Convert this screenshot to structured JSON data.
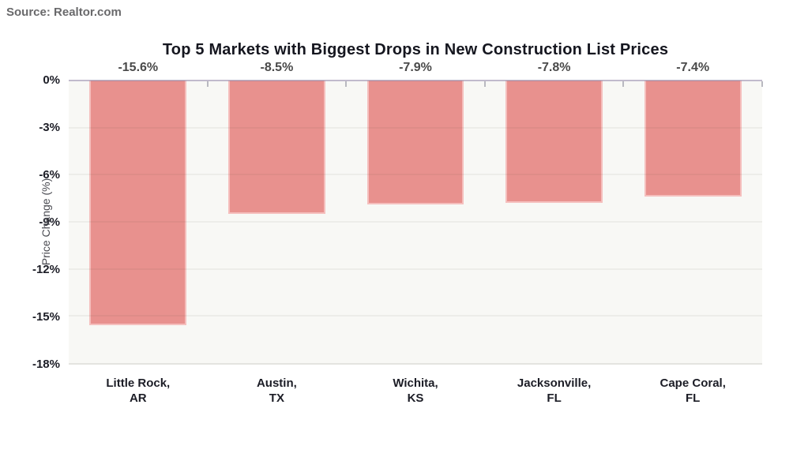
{
  "source_label": "Source: Realtor.com",
  "chart_data": {
    "type": "bar",
    "title": "Top 5 Markets with Biggest Drops in New Construction List Prices",
    "categories": [
      [
        "Little Rock,",
        "AR"
      ],
      [
        "Austin,",
        "TX"
      ],
      [
        "Wichita,",
        "KS"
      ],
      [
        "Jacksonville,",
        "FL"
      ],
      [
        "Cape Coral,",
        "FL"
      ]
    ],
    "values": [
      -15.6,
      -8.5,
      -7.9,
      -7.8,
      -7.4
    ],
    "bar_labels": [
      "-15.6%",
      "-8.5%",
      "-7.9%",
      "-7.8%",
      "-7.4%"
    ],
    "xlabel": "",
    "ylabel": "Price Change (%)",
    "ylim": [
      -18,
      0
    ],
    "yticks": [
      "0%",
      "-3%",
      "-6%",
      "-9%",
      "-12%",
      "-15%",
      "-18%"
    ],
    "ytick_values": [
      0,
      -3,
      -6,
      -9,
      -12,
      -15,
      -18
    ],
    "grid": true,
    "legend": "none",
    "colors": {
      "page_bg": "#FFFFFF",
      "bar_fill": "#E8918E",
      "bar_border": "rgba(255,230,228,0.55)",
      "plot_bg": "#F8F8F5",
      "gridline": "rgba(60,60,50,0.06)",
      "zero_line": "rgba(143,133,165,0.55)",
      "tick": "#B9B9C0",
      "title_text": "#15161F",
      "axis_text": "#1C1D26",
      "value_label_text": "#4A4A4A",
      "ylabel_text": "#4A4B52",
      "source_text": "#69696B"
    }
  }
}
